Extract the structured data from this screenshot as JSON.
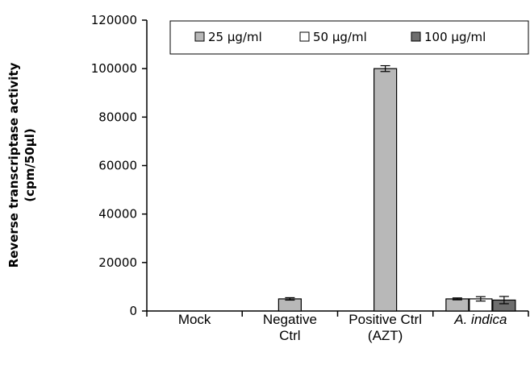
{
  "chart_data": {
    "type": "bar",
    "title": "",
    "ylabel_lines": [
      "Reverse transcriptase activity",
      "(cpm/50µl)"
    ],
    "xlabel": "",
    "ylim": [
      0,
      120000
    ],
    "yticks": [
      0,
      20000,
      40000,
      60000,
      80000,
      100000,
      120000
    ],
    "ytick_labels": [
      "0",
      "20000",
      "40000",
      "60000",
      "80000",
      "100000",
      "120000"
    ],
    "grid": false,
    "legend_position": "top-right",
    "categories": [
      {
        "lines": [
          "Mock"
        ],
        "italic": false
      },
      {
        "lines": [
          "Negative",
          "Ctrl"
        ],
        "italic": false
      },
      {
        "lines": [
          "Positive Ctrl",
          "(AZT)"
        ],
        "italic": false
      },
      {
        "lines": [
          "A. indica"
        ],
        "italic": true
      }
    ],
    "series": [
      {
        "name": "25 µg/ml",
        "color": "#b8b8b8",
        "values": [
          0,
          null,
          null,
          5000
        ],
        "errors": [
          0,
          null,
          null,
          400
        ]
      },
      {
        "name": "50 µg/ml",
        "color": "#ffffff",
        "values": [
          0,
          null,
          null,
          5000
        ],
        "errors": [
          0,
          null,
          null,
          900
        ]
      },
      {
        "name": "100 µg/ml",
        "color": "#6e6e6e",
        "values": [
          0,
          null,
          null,
          4500
        ],
        "errors": [
          0,
          null,
          null,
          1500
        ]
      }
    ],
    "control_bars": [
      {
        "category_index": 1,
        "value": 5000,
        "error": 500,
        "color": "#b8b8b8"
      },
      {
        "category_index": 2,
        "value": 100000,
        "error": 1200,
        "color": "#b8b8b8"
      }
    ]
  }
}
